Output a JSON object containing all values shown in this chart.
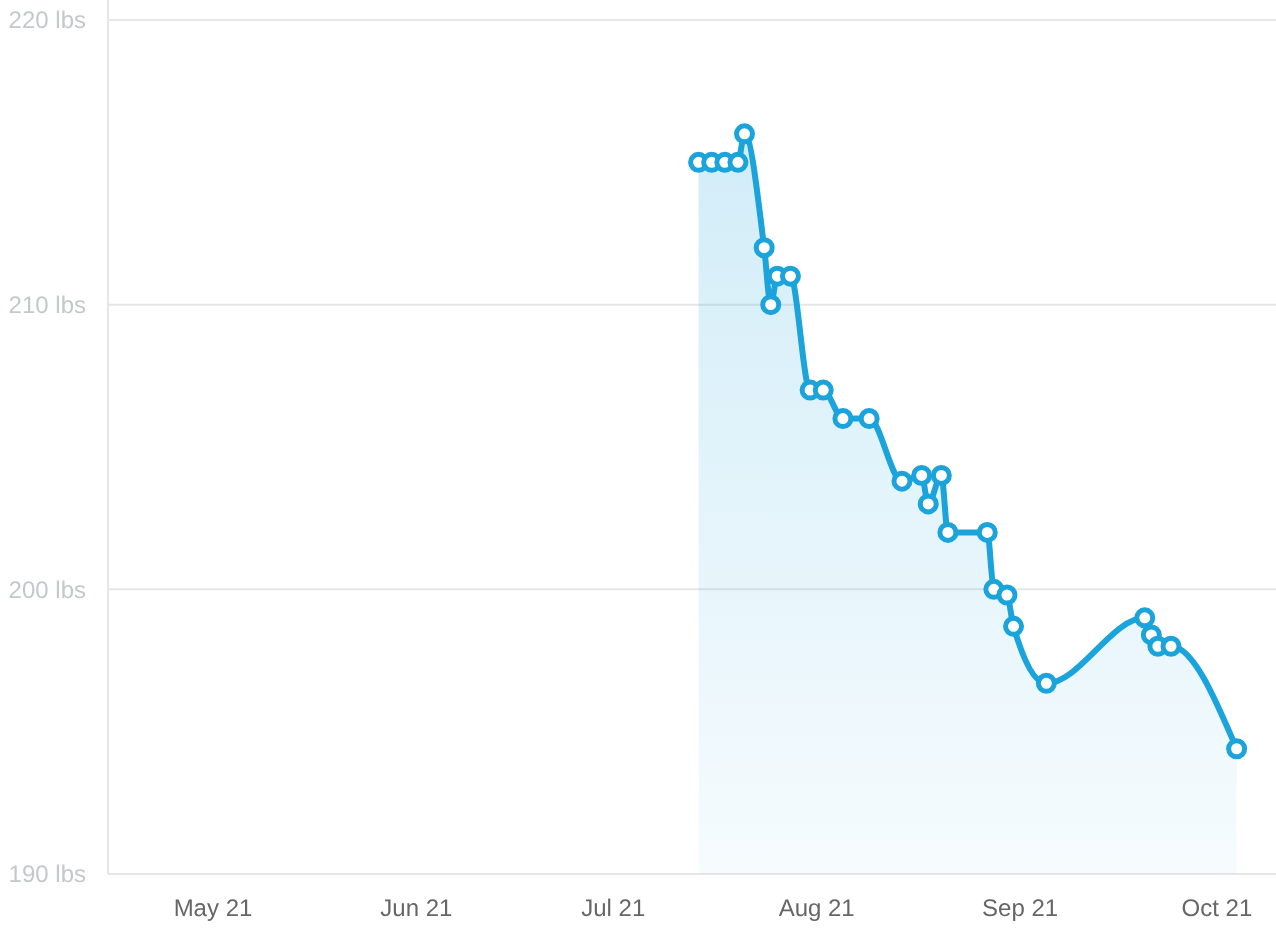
{
  "chart_data": {
    "type": "area",
    "x": [
      "2021-07-14",
      "2021-07-16",
      "2021-07-18",
      "2021-07-20",
      "2021-07-21",
      "2021-07-24",
      "2021-07-25",
      "2021-07-26",
      "2021-07-28",
      "2021-07-31",
      "2021-08-02",
      "2021-08-05",
      "2021-08-09",
      "2021-08-14",
      "2021-08-17",
      "2021-08-18",
      "2021-08-20",
      "2021-08-21",
      "2021-08-27",
      "2021-08-28",
      "2021-08-30",
      "2021-08-31",
      "2021-09-05",
      "2021-09-20",
      "2021-09-21",
      "2021-09-22",
      "2021-09-24",
      "2021-10-04"
    ],
    "series": [
      {
        "color": "#1ba3dc",
        "values": [
          215,
          215,
          215,
          215,
          216,
          212,
          210,
          211,
          211,
          207,
          207,
          206,
          206,
          203.8,
          204,
          203,
          204,
          202,
          202,
          200,
          199.8,
          198.7,
          196.7,
          199,
          198.4,
          198,
          198,
          194.4
        ]
      }
    ],
    "xlim": [
      "2021-04-15",
      "2021-10-10"
    ],
    "xticks": [
      {
        "value": "2021-05-01",
        "label": "May 21"
      },
      {
        "value": "2021-06-01",
        "label": "Jun 21"
      },
      {
        "value": "2021-07-01",
        "label": "Jul 21"
      },
      {
        "value": "2021-08-01",
        "label": "Aug 21"
      },
      {
        "value": "2021-09-01",
        "label": "Sep 21"
      },
      {
        "value": "2021-10-01",
        "label": "Oct 21"
      }
    ],
    "ylim": [
      190,
      220
    ],
    "yticks": [
      {
        "value": 190,
        "label": "190 lbs"
      },
      {
        "value": 200,
        "label": "200 lbs"
      },
      {
        "value": 210,
        "label": "210 lbs"
      },
      {
        "value": 220,
        "label": "220 lbs"
      }
    ],
    "grid": "y",
    "marker": "circle",
    "line_style": "solid"
  }
}
